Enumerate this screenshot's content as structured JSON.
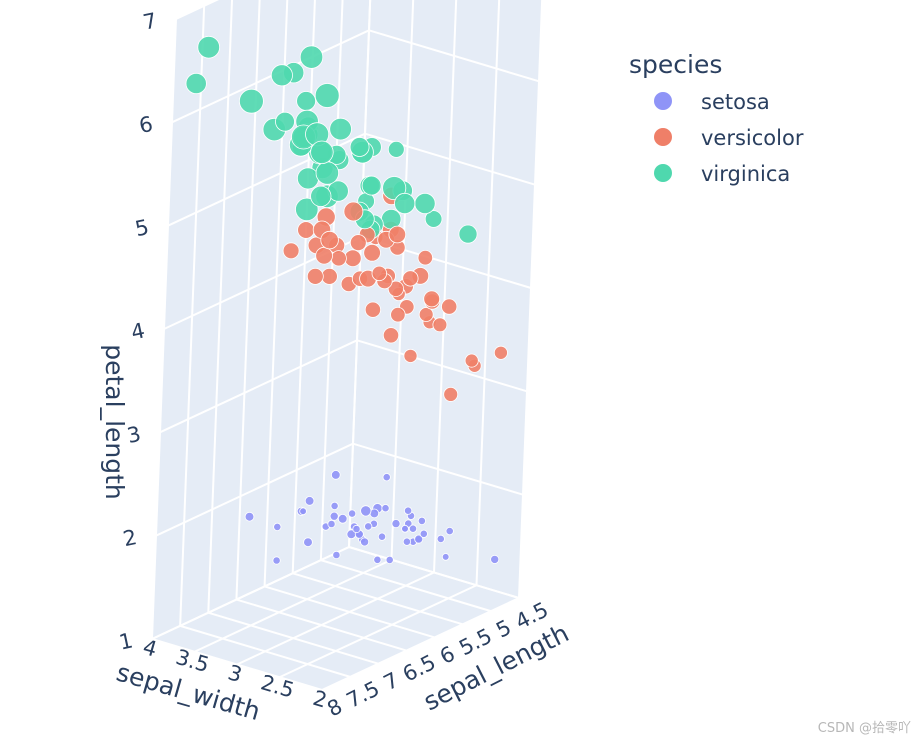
{
  "chart_data": {
    "type": "scatter3d",
    "title": "",
    "axes": {
      "x": {
        "label": "sepal_length",
        "ticks": [
          "8",
          "7.5",
          "7",
          "6.5",
          "6",
          "5.5",
          "5",
          "4.5"
        ],
        "range": [
          8,
          4.5
        ]
      },
      "y": {
        "label": "sepal_width",
        "ticks": [
          "2",
          "2.5",
          "3",
          "3.5",
          "4"
        ],
        "range": [
          2,
          4
        ]
      },
      "z": {
        "label": "petal_length",
        "ticks": [
          "1",
          "2",
          "3",
          "4",
          "5",
          "6",
          "7"
        ],
        "range": [
          1,
          7
        ]
      }
    },
    "legend": {
      "title": "species",
      "position": "top-right"
    },
    "series": [
      {
        "name": "setosa",
        "color": "#8f94f7",
        "points": [
          [
            5.1,
            3.5,
            1.4,
            0.2
          ],
          [
            4.9,
            3.0,
            1.4,
            0.2
          ],
          [
            4.7,
            3.2,
            1.3,
            0.2
          ],
          [
            4.6,
            3.1,
            1.5,
            0.2
          ],
          [
            5.0,
            3.6,
            1.4,
            0.2
          ],
          [
            5.4,
            3.9,
            1.7,
            0.4
          ],
          [
            4.6,
            3.4,
            1.4,
            0.3
          ],
          [
            5.0,
            3.4,
            1.5,
            0.2
          ],
          [
            4.4,
            2.9,
            1.4,
            0.2
          ],
          [
            4.9,
            3.1,
            1.5,
            0.1
          ],
          [
            5.4,
            3.7,
            1.5,
            0.2
          ],
          [
            4.8,
            3.4,
            1.6,
            0.2
          ],
          [
            4.8,
            3.0,
            1.4,
            0.1
          ],
          [
            4.3,
            3.0,
            1.1,
            0.1
          ],
          [
            5.8,
            4.0,
            1.2,
            0.2
          ],
          [
            5.7,
            4.4,
            1.5,
            0.4
          ],
          [
            5.4,
            3.9,
            1.3,
            0.4
          ],
          [
            5.1,
            3.5,
            1.4,
            0.3
          ],
          [
            5.7,
            3.8,
            1.7,
            0.3
          ],
          [
            5.1,
            3.8,
            1.5,
            0.3
          ],
          [
            5.4,
            3.4,
            1.7,
            0.2
          ],
          [
            5.1,
            3.7,
            1.5,
            0.4
          ],
          [
            4.6,
            3.6,
            1.0,
            0.2
          ],
          [
            5.1,
            3.3,
            1.7,
            0.5
          ],
          [
            4.8,
            3.4,
            1.9,
            0.2
          ],
          [
            5.0,
            3.0,
            1.6,
            0.2
          ],
          [
            5.0,
            3.4,
            1.6,
            0.4
          ],
          [
            5.2,
            3.5,
            1.5,
            0.2
          ],
          [
            5.2,
            3.4,
            1.4,
            0.2
          ],
          [
            4.7,
            3.2,
            1.6,
            0.2
          ],
          [
            4.8,
            3.1,
            1.6,
            0.2
          ],
          [
            5.4,
            3.4,
            1.5,
            0.4
          ],
          [
            5.2,
            4.1,
            1.5,
            0.1
          ],
          [
            5.5,
            4.2,
            1.4,
            0.2
          ],
          [
            4.9,
            3.1,
            1.5,
            0.1
          ],
          [
            5.0,
            3.2,
            1.2,
            0.2
          ],
          [
            5.5,
            3.5,
            1.3,
            0.2
          ],
          [
            4.4,
            3.0,
            1.3,
            0.2
          ],
          [
            5.1,
            3.4,
            1.5,
            0.2
          ],
          [
            5.0,
            3.5,
            1.3,
            0.3
          ],
          [
            4.5,
            2.3,
            1.3,
            0.3
          ],
          [
            4.4,
            3.2,
            1.3,
            0.2
          ],
          [
            5.0,
            3.5,
            1.6,
            0.6
          ],
          [
            5.1,
            3.8,
            1.9,
            0.4
          ],
          [
            4.8,
            3.0,
            1.4,
            0.3
          ],
          [
            5.1,
            3.8,
            1.6,
            0.2
          ],
          [
            4.6,
            3.2,
            1.4,
            0.2
          ],
          [
            5.3,
            3.7,
            1.5,
            0.2
          ],
          [
            5.0,
            3.3,
            1.4,
            0.2
          ]
        ]
      },
      {
        "name": "versicolor",
        "color": "#ef7f68",
        "points": [
          [
            7.0,
            3.2,
            4.7,
            1.4
          ],
          [
            6.4,
            3.2,
            4.5,
            1.5
          ],
          [
            6.9,
            3.1,
            4.9,
            1.5
          ],
          [
            5.5,
            2.3,
            4.0,
            1.3
          ],
          [
            6.5,
            2.8,
            4.6,
            1.5
          ],
          [
            5.7,
            2.8,
            4.5,
            1.3
          ],
          [
            6.3,
            3.3,
            4.7,
            1.6
          ],
          [
            4.9,
            2.4,
            3.3,
            1.0
          ],
          [
            6.6,
            2.9,
            4.6,
            1.3
          ],
          [
            5.2,
            2.7,
            3.9,
            1.4
          ],
          [
            5.0,
            2.0,
            3.5,
            1.0
          ],
          [
            5.9,
            3.0,
            4.2,
            1.5
          ],
          [
            6.0,
            2.2,
            4.0,
            1.0
          ],
          [
            6.1,
            2.9,
            4.7,
            1.4
          ],
          [
            5.6,
            2.9,
            3.6,
            1.3
          ],
          [
            6.7,
            3.1,
            4.4,
            1.4
          ],
          [
            5.6,
            3.0,
            4.5,
            1.5
          ],
          [
            5.8,
            2.7,
            4.1,
            1.0
          ],
          [
            6.2,
            2.2,
            4.5,
            1.5
          ],
          [
            5.6,
            2.5,
            3.9,
            1.1
          ],
          [
            5.9,
            3.2,
            4.8,
            1.8
          ],
          [
            6.1,
            2.8,
            4.0,
            1.3
          ],
          [
            6.3,
            2.5,
            4.9,
            1.5
          ],
          [
            6.1,
            2.8,
            4.7,
            1.2
          ],
          [
            6.4,
            2.9,
            4.3,
            1.3
          ],
          [
            6.6,
            3.0,
            4.4,
            1.4
          ],
          [
            6.8,
            2.8,
            4.8,
            1.4
          ],
          [
            6.7,
            3.0,
            5.0,
            1.7
          ],
          [
            6.0,
            2.9,
            4.5,
            1.5
          ],
          [
            5.7,
            2.6,
            3.5,
            1.0
          ],
          [
            5.5,
            2.4,
            3.8,
            1.1
          ],
          [
            5.8,
            2.7,
            3.9,
            1.2
          ],
          [
            6.0,
            2.7,
            5.1,
            1.6
          ],
          [
            5.4,
            3.0,
            4.5,
            1.5
          ],
          [
            6.0,
            3.4,
            4.5,
            1.6
          ],
          [
            6.7,
            3.1,
            4.7,
            1.5
          ],
          [
            6.3,
            2.3,
            4.4,
            1.3
          ],
          [
            5.6,
            3.0,
            4.1,
            1.3
          ],
          [
            5.5,
            2.5,
            4.0,
            1.3
          ],
          [
            5.5,
            2.6,
            4.4,
            1.2
          ],
          [
            6.1,
            3.0,
            4.6,
            1.4
          ],
          [
            5.8,
            2.6,
            4.0,
            1.2
          ],
          [
            5.0,
            2.3,
            3.3,
            1.0
          ],
          [
            5.6,
            2.7,
            4.2,
            1.3
          ],
          [
            5.7,
            3.0,
            4.2,
            1.2
          ],
          [
            5.7,
            2.9,
            4.2,
            1.3
          ],
          [
            6.2,
            2.9,
            4.3,
            1.3
          ],
          [
            5.1,
            2.5,
            3.0,
            1.1
          ],
          [
            5.7,
            2.8,
            4.1,
            1.3
          ]
        ]
      },
      {
        "name": "virginica",
        "color": "#4fd8ae",
        "points": [
          [
            6.3,
            3.3,
            6.0,
            2.5
          ],
          [
            5.8,
            2.7,
            5.1,
            1.9
          ],
          [
            7.1,
            3.0,
            5.9,
            2.1
          ],
          [
            6.3,
            2.9,
            5.6,
            1.8
          ],
          [
            6.5,
            3.0,
            5.8,
            2.2
          ],
          [
            7.6,
            3.0,
            6.6,
            2.1
          ],
          [
            4.9,
            2.5,
            4.5,
            1.7
          ],
          [
            7.3,
            2.9,
            6.3,
            1.8
          ],
          [
            6.7,
            2.5,
            5.8,
            1.8
          ],
          [
            7.2,
            3.6,
            6.1,
            2.5
          ],
          [
            6.5,
            3.2,
            5.1,
            2.0
          ],
          [
            6.4,
            2.7,
            5.3,
            1.9
          ],
          [
            6.8,
            3.0,
            5.5,
            2.1
          ],
          [
            5.7,
            2.5,
            5.0,
            2.0
          ],
          [
            5.8,
            2.8,
            5.1,
            2.4
          ],
          [
            6.4,
            3.2,
            5.3,
            2.3
          ],
          [
            6.5,
            3.0,
            5.5,
            1.8
          ],
          [
            7.7,
            3.8,
            6.7,
            2.2
          ],
          [
            7.7,
            2.6,
            6.9,
            2.3
          ],
          [
            6.0,
            2.2,
            5.0,
            1.5
          ],
          [
            6.9,
            3.2,
            5.7,
            2.3
          ],
          [
            5.6,
            2.8,
            4.9,
            2.0
          ],
          [
            7.7,
            2.8,
            6.7,
            2.0
          ],
          [
            6.3,
            2.7,
            4.9,
            1.8
          ],
          [
            6.7,
            3.3,
            5.7,
            2.1
          ],
          [
            7.2,
            3.2,
            6.0,
            1.8
          ],
          [
            6.2,
            2.8,
            4.8,
            1.8
          ],
          [
            6.1,
            3.0,
            4.9,
            1.8
          ],
          [
            6.4,
            2.8,
            5.6,
            2.1
          ],
          [
            7.2,
            3.0,
            5.8,
            1.6
          ],
          [
            7.4,
            2.8,
            6.1,
            1.9
          ],
          [
            7.9,
            3.8,
            6.4,
            2.0
          ],
          [
            6.4,
            2.8,
            5.6,
            2.2
          ],
          [
            6.3,
            2.8,
            5.1,
            1.5
          ],
          [
            6.1,
            2.6,
            5.6,
            1.4
          ],
          [
            7.7,
            3.0,
            6.1,
            2.3
          ],
          [
            6.3,
            3.4,
            5.6,
            2.4
          ],
          [
            6.4,
            3.1,
            5.5,
            1.8
          ],
          [
            6.0,
            3.0,
            4.8,
            1.8
          ],
          [
            6.9,
            3.1,
            5.4,
            2.1
          ],
          [
            6.7,
            3.1,
            5.6,
            2.4
          ],
          [
            6.9,
            3.1,
            5.1,
            2.3
          ],
          [
            6.8,
            3.2,
            5.9,
            2.3
          ],
          [
            6.7,
            3.3,
            5.7,
            2.5
          ],
          [
            6.7,
            3.0,
            5.2,
            2.3
          ],
          [
            6.3,
            2.5,
            5.0,
            1.9
          ],
          [
            6.5,
            3.0,
            5.2,
            2.0
          ],
          [
            6.2,
            3.4,
            5.4,
            2.3
          ],
          [
            5.9,
            3.0,
            5.1,
            1.8
          ]
        ]
      }
    ]
  },
  "watermark": "CSDN @拾零吖"
}
